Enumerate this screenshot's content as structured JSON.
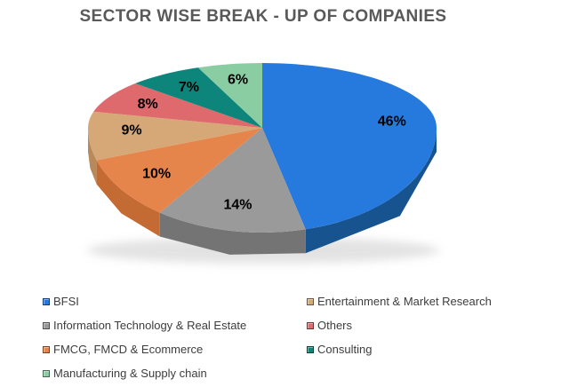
{
  "chart_data": {
    "type": "pie",
    "is_3d": true,
    "title": "SECTOR WISE BREAK - UP OF COMPANIES",
    "start_angle_deg": 0,
    "direction": "clockwise",
    "legend_position": "bottom",
    "slices": [
      {
        "label": "BFSI",
        "value": 46,
        "pct_label": "46%",
        "color": "#2679dd",
        "side_color": "#17538f"
      },
      {
        "label": "Information Technology & Real Estate",
        "value": 14,
        "pct_label": "14%",
        "color": "#9a9a9a",
        "side_color": "#747474"
      },
      {
        "label": "FMCG, FMCD & Ecommerce",
        "value": 10,
        "pct_label": "10%",
        "color": "#e6854b",
        "side_color": "#c46a33"
      },
      {
        "label": "Entertainment & Market Research",
        "value": 9,
        "pct_label": "9%",
        "color": "#d7a877",
        "side_color": "#b8895a"
      },
      {
        "label": "Others",
        "value": 8,
        "pct_label": "8%",
        "color": "#df6a6d",
        "side_color": "#b84f52"
      },
      {
        "label": "Consulting",
        "value": 7,
        "pct_label": "7%",
        "color": "#0e857b",
        "side_color": "#0a615a"
      },
      {
        "label": "Manufacturing & Supply chain",
        "value": 6,
        "pct_label": "6%",
        "color": "#8bcda3",
        "side_color": "#67a87e"
      }
    ],
    "legend_columns": [
      [
        0,
        1,
        2,
        6
      ],
      [
        3,
        4,
        5
      ]
    ]
  }
}
